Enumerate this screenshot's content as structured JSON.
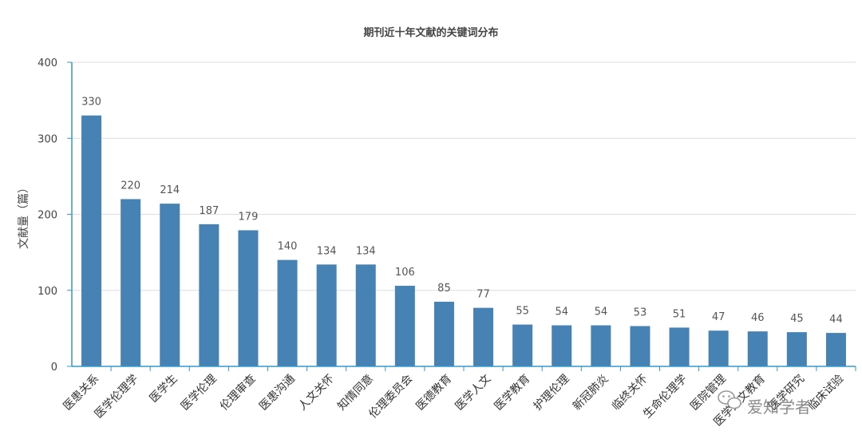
{
  "chart_data": {
    "type": "bar",
    "title": "期刊近十年文献的关键词分布",
    "ylabel": "文献量（篇）",
    "xlabel": "",
    "ylim": [
      0,
      400
    ],
    "yticks": [
      0,
      100,
      200,
      300,
      400
    ],
    "grid": true,
    "categories": [
      "医患关系",
      "医学伦理学",
      "医学生",
      "医学伦理",
      "伦理审查",
      "医患沟通",
      "人文关怀",
      "知情同意",
      "伦理委员会",
      "医德教育",
      "医学人文",
      "医学教育",
      "护理伦理",
      "新冠肺炎",
      "临终关怀",
      "生命伦理学",
      "医院管理",
      "医学人文教育",
      "医学研究",
      "临床试验"
    ],
    "values": [
      330,
      220,
      214,
      187,
      179,
      140,
      134,
      134,
      106,
      85,
      77,
      55,
      54,
      54,
      53,
      51,
      47,
      46,
      45,
      44
    ],
    "bar_color": "#4682b4",
    "axis_color": "#3399cc",
    "grid_color": "#dddddd"
  },
  "watermark": {
    "text": "爱知学者",
    "icon": "wechat-icon"
  }
}
